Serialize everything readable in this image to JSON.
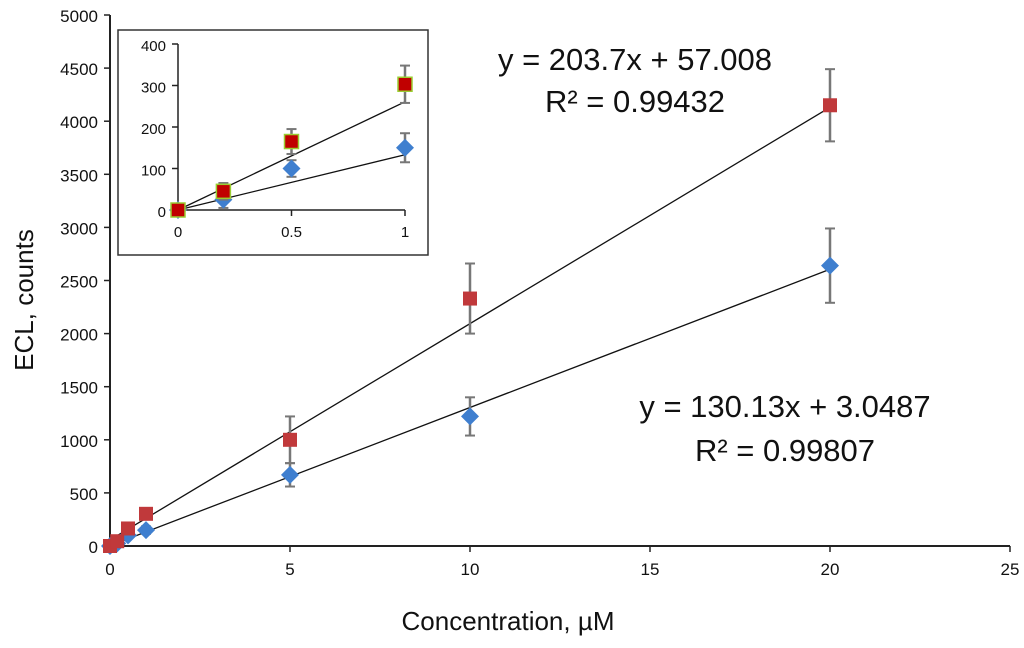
{
  "chart_data": [
    {
      "type": "scatter",
      "xlabel": "Concentration, µM",
      "ylabel": "ECL, counts",
      "xlim": [
        0,
        25
      ],
      "ylim": [
        0,
        5000
      ],
      "xticks": [
        0,
        5,
        10,
        15,
        20,
        25
      ],
      "yticks": [
        0,
        500,
        1000,
        1500,
        2000,
        2500,
        3000,
        3500,
        4000,
        4500,
        5000
      ],
      "grid": false,
      "series": [
        {
          "color": "#c0393b",
          "marker": "square",
          "x": [
            0,
            0.2,
            0.5,
            1,
            5,
            10,
            20
          ],
          "y": [
            0,
            45,
            165,
            303,
            1000,
            2330,
            4150
          ],
          "error": [
            10,
            20,
            30,
            45,
            220,
            330,
            340
          ],
          "fit": {
            "slope": 203.7,
            "intercept": 57.008
          },
          "equation": "y = 203.7x + 57.008",
          "r2": "R² = 0.99432"
        },
        {
          "color": "#3f7fcf",
          "marker": "diamond",
          "x": [
            0,
            0.2,
            0.5,
            1,
            5,
            10,
            20
          ],
          "y": [
            0,
            25,
            100,
            150,
            670,
            1220,
            2640
          ],
          "error": [
            10,
            20,
            20,
            35,
            110,
            180,
            350
          ],
          "fit": {
            "slope": 130.13,
            "intercept": 3.0487
          },
          "equation": "y = 130.13x + 3.0487",
          "r2": "R² = 0.99807"
        }
      ]
    },
    {
      "type": "scatter",
      "inset": true,
      "xlim": [
        0,
        1
      ],
      "ylim": [
        0,
        400
      ],
      "xticks": [
        0,
        0.5,
        1
      ],
      "yticks": [
        0,
        100,
        200,
        300,
        400
      ],
      "series_ref": "same as main chart, x <= 1",
      "inset_red_color": "#c00000"
    }
  ]
}
